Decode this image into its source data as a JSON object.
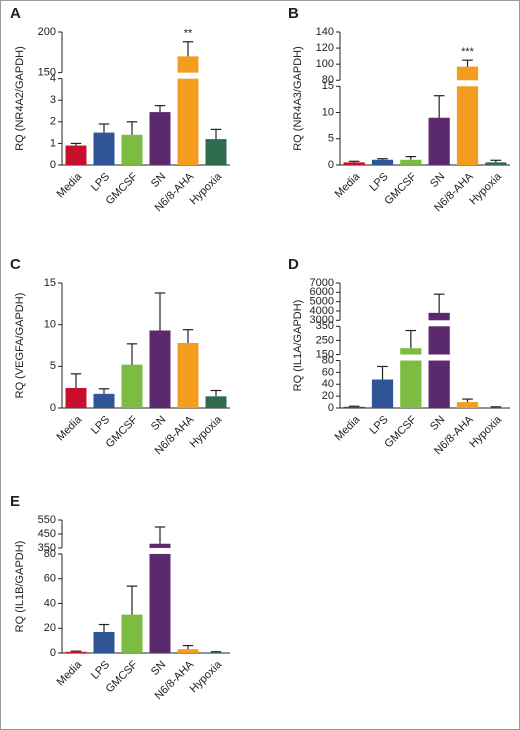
{
  "chart_data": [
    {
      "type": "bar",
      "panel": "A",
      "ylabel": "RQ (NR4A2/GAPDH)",
      "categories": [
        "Media",
        "LPS",
        "GMCSF",
        "SN",
        "N6/8-AHA",
        "Hypoxia"
      ],
      "colors": [
        "#c8102e",
        "#2f5597",
        "#7dbb42",
        "#5b2a6e",
        "#f39c1f",
        "#2e6b4f"
      ],
      "values": [
        0.9,
        1.5,
        1.4,
        2.45,
        170,
        1.2
      ],
      "errors": [
        0.1,
        0.4,
        0.6,
        0.3,
        18,
        0.45
      ],
      "annotations": [
        null,
        null,
        null,
        null,
        "**",
        null
      ],
      "axis_segments": [
        {
          "ylim": [
            0,
            4
          ],
          "yticks": [
            0,
            1,
            2,
            3,
            4
          ]
        },
        {
          "ylim": [
            150,
            200
          ],
          "yticks": [
            150,
            200
          ]
        }
      ]
    },
    {
      "type": "bar",
      "panel": "B",
      "ylabel": "RQ (NR4A3/GAPDH)",
      "categories": [
        "Media",
        "LPS",
        "GMCSF",
        "SN",
        "N6/8-AHA",
        "Hypoxia"
      ],
      "colors": [
        "#c8102e",
        "#2f5597",
        "#7dbb42",
        "#5b2a6e",
        "#f39c1f",
        "#2e6b4f"
      ],
      "values": [
        0.5,
        1.0,
        1.0,
        9,
        97,
        0.5
      ],
      "errors": [
        0.2,
        0.2,
        0.6,
        4.2,
        8,
        0.4
      ],
      "annotations": [
        null,
        null,
        null,
        null,
        "***",
        null
      ],
      "axis_segments": [
        {
          "ylim": [
            0,
            15
          ],
          "yticks": [
            0,
            5,
            10,
            15
          ]
        },
        {
          "ylim": [
            80,
            140
          ],
          "yticks": [
            80,
            100,
            120,
            140
          ]
        }
      ]
    },
    {
      "type": "bar",
      "panel": "C",
      "ylabel": "RQ (VEGFA/GAPDH)",
      "categories": [
        "Media",
        "LPS",
        "GMCSF",
        "SN",
        "N6/8-AHA",
        "Hypoxia"
      ],
      "colors": [
        "#c8102e",
        "#2f5597",
        "#7dbb42",
        "#5b2a6e",
        "#f39c1f",
        "#2e6b4f"
      ],
      "values": [
        2.4,
        1.7,
        5.2,
        9.3,
        7.8,
        1.4
      ],
      "errors": [
        1.7,
        0.6,
        2.5,
        4.5,
        1.6,
        0.7
      ],
      "axis_segments": [
        {
          "ylim": [
            0,
            15
          ],
          "yticks": [
            0,
            5,
            10,
            15
          ]
        }
      ]
    },
    {
      "type": "bar",
      "panel": "D",
      "ylabel": "RQ (IL1A/GAPDH)",
      "categories": [
        "Media",
        "LPS",
        "GMCSF",
        "SN",
        "N6/8-AHA",
        "Hypoxia"
      ],
      "colors": [
        "#c8102e",
        "#2f5597",
        "#7dbb42",
        "#5b2a6e",
        "#f39c1f",
        "#2e6b4f"
      ],
      "values": [
        2,
        48,
        195,
        3800,
        10,
        1
      ],
      "errors": [
        1,
        22,
        125,
        2000,
        5,
        1
      ],
      "axis_segments": [
        {
          "ylim": [
            0,
            80
          ],
          "yticks": [
            0,
            20,
            40,
            60,
            80
          ]
        },
        {
          "ylim": [
            150,
            350
          ],
          "yticks": [
            150,
            250,
            350
          ]
        },
        {
          "ylim": [
            3000,
            7000
          ],
          "yticks": [
            3000,
            4000,
            5000,
            6000,
            7000
          ]
        }
      ]
    },
    {
      "type": "bar",
      "panel": "E",
      "ylabel": "RQ (IL1B/GAPDH)",
      "categories": [
        "Media",
        "LPS",
        "GMCSF",
        "SN",
        "N6/8-AHA",
        "Hypoxia"
      ],
      "colors": [
        "#c8102e",
        "#2f5597",
        "#7dbb42",
        "#5b2a6e",
        "#f39c1f",
        "#2e6b4f"
      ],
      "values": [
        1,
        17,
        31,
        380,
        3,
        0.5
      ],
      "errors": [
        0.5,
        6,
        23,
        120,
        3,
        0.5
      ],
      "axis_segments": [
        {
          "ylim": [
            0,
            80
          ],
          "yticks": [
            0,
            20,
            40,
            60,
            80
          ]
        },
        {
          "ylim": [
            350,
            550
          ],
          "yticks": [
            350,
            450,
            550
          ]
        }
      ]
    }
  ]
}
